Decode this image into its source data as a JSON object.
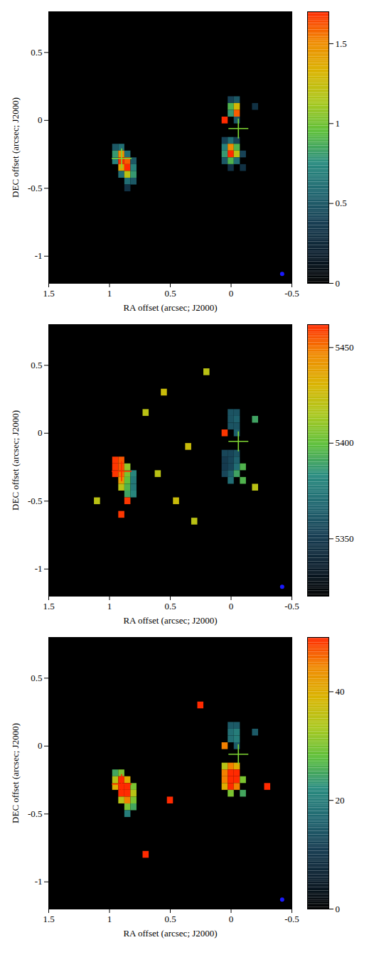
{
  "chart_data": [
    {
      "type": "heatmap",
      "x_label": "RA offset (arcsec; J2000)",
      "y_label": "DEC offset (arcsec; J2000)",
      "xlim": [
        1.5,
        -0.5
      ],
      "xticks": [
        1.5,
        1,
        0.5,
        0,
        -0.5
      ],
      "ylim": [
        -1.2,
        0.8
      ],
      "yticks": [
        -1,
        -0.5,
        0,
        0.5
      ],
      "pixel_size": 0.05,
      "colorbar": {
        "range": [
          0,
          1.7
        ],
        "ticks": [
          0,
          0.5,
          1,
          1.5
        ]
      },
      "cells": [
        [
          0.95,
          -0.2,
          0.5
        ],
        [
          0.9,
          -0.2,
          0.6
        ],
        [
          0.95,
          -0.25,
          0.8
        ],
        [
          0.9,
          -0.25,
          1.5
        ],
        [
          0.85,
          -0.25,
          0.6
        ],
        [
          0.95,
          -0.3,
          0.7
        ],
        [
          0.9,
          -0.3,
          1.7
        ],
        [
          0.85,
          -0.3,
          1.6
        ],
        [
          0.8,
          -0.3,
          0.5
        ],
        [
          0.9,
          -0.35,
          1.4
        ],
        [
          0.85,
          -0.35,
          1.7
        ],
        [
          0.8,
          -0.35,
          0.7
        ],
        [
          0.9,
          -0.4,
          0.6
        ],
        [
          0.85,
          -0.4,
          1.2
        ],
        [
          0.8,
          -0.4,
          0.8
        ],
        [
          0.85,
          -0.45,
          0.6
        ],
        [
          0.8,
          -0.45,
          0.5
        ],
        [
          0.85,
          -0.5,
          0.3
        ],
        [
          0,
          0.15,
          0.4
        ],
        [
          -0.05,
          0.15,
          0.5
        ],
        [
          0,
          0.1,
          0.9
        ],
        [
          -0.05,
          0.1,
          1.3
        ],
        [
          -0.05,
          0.05,
          1.6
        ],
        [
          0,
          0.05,
          0.8
        ],
        [
          0.05,
          0,
          1.7
        ],
        [
          -0.05,
          0,
          0.5
        ],
        [
          0.05,
          -0.15,
          0.4
        ],
        [
          0,
          -0.15,
          0.6
        ],
        [
          -0.05,
          -0.15,
          0.4
        ],
        [
          0.05,
          -0.2,
          0.7
        ],
        [
          0,
          -0.2,
          1.5
        ],
        [
          -0.05,
          -0.2,
          0.9
        ],
        [
          0.05,
          -0.25,
          0.8
        ],
        [
          0,
          -0.25,
          1.7
        ],
        [
          -0.05,
          -0.25,
          1.2
        ],
        [
          -0.1,
          -0.25,
          0.4
        ],
        [
          0.05,
          -0.3,
          0.5
        ],
        [
          0,
          -0.3,
          0.9
        ],
        [
          -0.05,
          -0.3,
          0.6
        ],
        [
          0,
          -0.35,
          0.3
        ],
        [
          -0.1,
          -0.35,
          0.3
        ],
        [
          -0.2,
          0.1,
          0.3
        ]
      ],
      "markers": [
        {
          "x": 0.9,
          "y": -0.28,
          "color": "#7fd633"
        },
        {
          "x": -0.06,
          "y": -0.06,
          "color": "#7fd633"
        }
      ],
      "beam": {
        "x": -0.42,
        "y": -1.13,
        "color": "#1a1aff"
      }
    },
    {
      "type": "heatmap",
      "x_label": "RA offset (arcsec; J2000)",
      "y_label": "DEC offset (arcsec; J2000)",
      "xlim": [
        1.5,
        -0.5
      ],
      "xticks": [
        1.5,
        1,
        0.5,
        0,
        -0.5
      ],
      "ylim": [
        -1.2,
        0.8
      ],
      "yticks": [
        -1,
        -0.5,
        0,
        0.5
      ],
      "pixel_size": 0.05,
      "colorbar": {
        "range": [
          5320,
          5462
        ],
        "ticks": [
          5350,
          5400,
          5450
        ]
      },
      "cells": [
        [
          0.95,
          -0.2,
          5460
        ],
        [
          0.9,
          -0.2,
          5455
        ],
        [
          0.95,
          -0.25,
          5460
        ],
        [
          0.9,
          -0.25,
          5455
        ],
        [
          0.85,
          -0.25,
          5410
        ],
        [
          0.95,
          -0.3,
          5460
        ],
        [
          0.9,
          -0.3,
          5450
        ],
        [
          0.85,
          -0.3,
          5405
        ],
        [
          0.8,
          -0.3,
          5380
        ],
        [
          0.9,
          -0.35,
          5440
        ],
        [
          0.85,
          -0.35,
          5400
        ],
        [
          0.8,
          -0.35,
          5375
        ],
        [
          0.9,
          -0.4,
          5420
        ],
        [
          0.85,
          -0.4,
          5395
        ],
        [
          0.8,
          -0.4,
          5375
        ],
        [
          0.85,
          -0.45,
          5390
        ],
        [
          0.8,
          -0.45,
          5380
        ],
        [
          0.85,
          -0.5,
          5460
        ],
        [
          0,
          0.15,
          5360
        ],
        [
          -0.05,
          0.15,
          5360
        ],
        [
          0,
          0.1,
          5360
        ],
        [
          -0.05,
          0.1,
          5365
        ],
        [
          -0.05,
          0.05,
          5360
        ],
        [
          0,
          0.05,
          5360
        ],
        [
          0.05,
          0,
          5460
        ],
        [
          -0.05,
          0,
          5365
        ],
        [
          0.05,
          -0.15,
          5355
        ],
        [
          0,
          -0.15,
          5355
        ],
        [
          -0.05,
          -0.15,
          5360
        ],
        [
          0.05,
          -0.2,
          5350
        ],
        [
          0,
          -0.2,
          5355
        ],
        [
          -0.05,
          -0.2,
          5365
        ],
        [
          0.05,
          -0.25,
          5350
        ],
        [
          0,
          -0.25,
          5355
        ],
        [
          -0.05,
          -0.25,
          5370
        ],
        [
          -0.1,
          -0.25,
          5395
        ],
        [
          0.05,
          -0.3,
          5355
        ],
        [
          0,
          -0.3,
          5365
        ],
        [
          -0.05,
          -0.3,
          5390
        ],
        [
          0,
          -0.35,
          5370
        ],
        [
          -0.1,
          -0.35,
          5395
        ],
        [
          -0.2,
          0.1,
          5390
        ],
        [
          0.6,
          -0.3,
          5420
        ],
        [
          0.45,
          -0.5,
          5425
        ],
        [
          0.3,
          -0.65,
          5420
        ],
        [
          0.55,
          0.3,
          5425
        ],
        [
          0.2,
          0.45,
          5420
        ],
        [
          0.7,
          0.15,
          5420
        ],
        [
          0.35,
          -0.1,
          5425
        ],
        [
          -0.2,
          -0.4,
          5420
        ],
        [
          0.9,
          -0.6,
          5460
        ],
        [
          1.1,
          -0.5,
          5420
        ]
      ],
      "markers": [
        {
          "x": 0.9,
          "y": -0.28,
          "color": "#ff2a00"
        },
        {
          "x": -0.06,
          "y": -0.06,
          "color": "#7fd633"
        }
      ],
      "beam": {
        "x": -0.42,
        "y": -1.13,
        "color": "#1a1aff"
      }
    },
    {
      "type": "heatmap",
      "x_label": "RA offset (arcsec; J2000)",
      "y_label": "DEC offset (arcsec; J2000)",
      "xlim": [
        1.5,
        -0.5
      ],
      "xticks": [
        1.5,
        1,
        0.5,
        0,
        -0.5
      ],
      "ylim": [
        -1.2,
        0.8
      ],
      "yticks": [
        -1,
        -0.5,
        0,
        0.5
      ],
      "pixel_size": 0.05,
      "colorbar": {
        "range": [
          0,
          50
        ],
        "ticks": [
          0,
          20,
          40
        ]
      },
      "cells": [
        [
          0.95,
          -0.2,
          25
        ],
        [
          0.9,
          -0.2,
          30
        ],
        [
          0.95,
          -0.25,
          35
        ],
        [
          0.9,
          -0.25,
          50
        ],
        [
          0.85,
          -0.25,
          40
        ],
        [
          0.95,
          -0.3,
          40
        ],
        [
          0.9,
          -0.3,
          50
        ],
        [
          0.85,
          -0.3,
          50
        ],
        [
          0.8,
          -0.3,
          30
        ],
        [
          0.9,
          -0.35,
          50
        ],
        [
          0.85,
          -0.35,
          50
        ],
        [
          0.8,
          -0.35,
          35
        ],
        [
          0.9,
          -0.4,
          35
        ],
        [
          0.85,
          -0.4,
          45
        ],
        [
          0.8,
          -0.4,
          30
        ],
        [
          0.85,
          -0.45,
          30
        ],
        [
          0.8,
          -0.45,
          25
        ],
        [
          0.85,
          -0.5,
          20
        ],
        [
          0,
          0.15,
          15
        ],
        [
          -0.05,
          0.15,
          15
        ],
        [
          0,
          0.1,
          18
        ],
        [
          -0.05,
          0.1,
          20
        ],
        [
          -0.05,
          0.05,
          20
        ],
        [
          0,
          0.05,
          18
        ],
        [
          0.05,
          0,
          45
        ],
        [
          -0.05,
          0,
          15
        ],
        [
          0.05,
          -0.15,
          35
        ],
        [
          0,
          -0.15,
          45
        ],
        [
          -0.05,
          -0.15,
          40
        ],
        [
          0.05,
          -0.2,
          45
        ],
        [
          0,
          -0.2,
          50
        ],
        [
          -0.05,
          -0.2,
          50
        ],
        [
          0.05,
          -0.25,
          45
        ],
        [
          0,
          -0.25,
          50
        ],
        [
          -0.05,
          -0.25,
          50
        ],
        [
          -0.1,
          -0.25,
          30
        ],
        [
          0.05,
          -0.3,
          40
        ],
        [
          0,
          -0.3,
          50
        ],
        [
          -0.05,
          -0.3,
          45
        ],
        [
          0,
          -0.35,
          30
        ],
        [
          -0.1,
          -0.35,
          25
        ],
        [
          -0.2,
          0.1,
          15
        ],
        [
          0.5,
          -0.4,
          50
        ],
        [
          0.25,
          0.3,
          50
        ],
        [
          -0.3,
          -0.3,
          50
        ],
        [
          0.7,
          -0.8,
          50
        ]
      ],
      "markers": [
        {
          "x": 0.9,
          "y": -0.28,
          "color": "#ff2a00"
        },
        {
          "x": -0.06,
          "y": -0.06,
          "color": "#7fd633"
        }
      ],
      "beam": {
        "x": -0.42,
        "y": -1.13,
        "color": "#1a1aff"
      }
    }
  ]
}
